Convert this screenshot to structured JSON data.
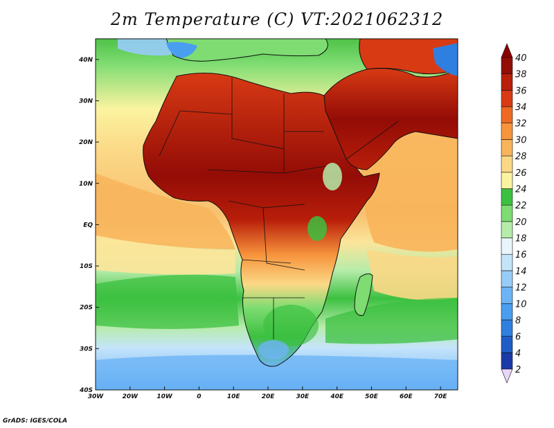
{
  "title": "2m Temperature (C) VT:2021062312",
  "credit": "GrADS: IGES/COLA",
  "map": {
    "lon_range": [
      -30,
      75
    ],
    "lat_range": [
      -40,
      45
    ],
    "x_ticks": [
      "30W",
      "20W",
      "10W",
      "0",
      "10E",
      "20E",
      "30E",
      "40E",
      "50E",
      "60E",
      "70E"
    ],
    "y_ticks": [
      "40S",
      "30S",
      "20S",
      "10S",
      "EQ",
      "10N",
      "20N",
      "30N",
      "40N"
    ]
  },
  "colorbar": {
    "labels": [
      "2",
      "4",
      "6",
      "8",
      "10",
      "12",
      "14",
      "16",
      "18",
      "20",
      "22",
      "24",
      "26",
      "28",
      "30",
      "32",
      "34",
      "36",
      "38",
      "40"
    ],
    "colors": [
      "#10107a",
      "#1a3aa8",
      "#1e5cc8",
      "#2f7fe0",
      "#4a9ef0",
      "#6db4f5",
      "#98ccf8",
      "#c4e4fa",
      "#e8f6fc",
      "#b6ecaa",
      "#7edc72",
      "#3cc040",
      "#fbf3a0",
      "#fbd886",
      "#f8b45a",
      "#f7943c",
      "#ee6a24",
      "#d83a14",
      "#b81e0a",
      "#930c06"
    ],
    "under_color": "#e6d6f8",
    "over_color": "#8a0000"
  }
}
